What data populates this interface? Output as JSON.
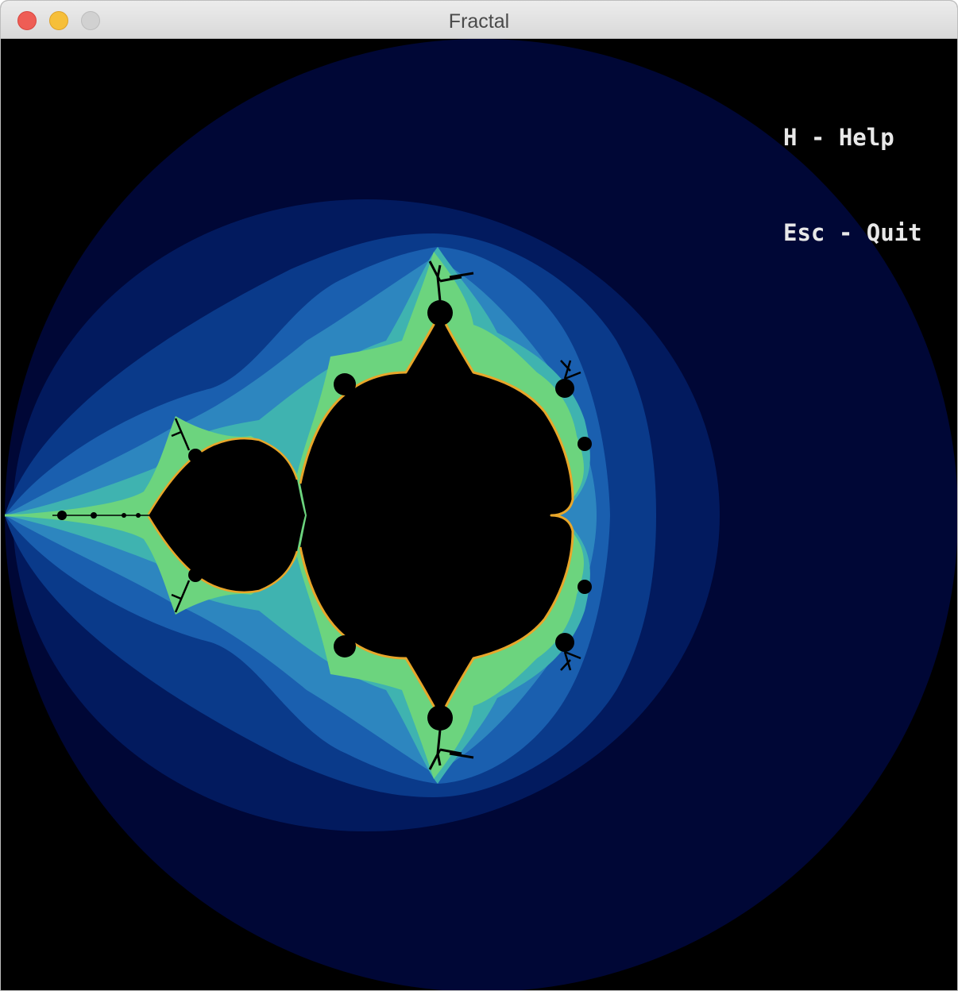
{
  "window": {
    "title": "Fractal"
  },
  "hud": {
    "help_hint": "H - Help",
    "quit_hint": "Esc - Quit"
  },
  "colors": {
    "background": "#000000",
    "band_outer": "#000736",
    "band_2": "#021a5e",
    "band_3": "#0a3a8a",
    "band_4": "#1a5faf",
    "band_5": "#2d86bf",
    "band_6": "#3fb3b0",
    "band_7": "#6cd47e",
    "edge_glow": "#e8a62a",
    "set_interior": "#000000"
  },
  "icons": {
    "close": "close-traffic-light-icon",
    "minimize": "minimize-traffic-light-icon",
    "zoom": "zoom-traffic-light-icon"
  }
}
